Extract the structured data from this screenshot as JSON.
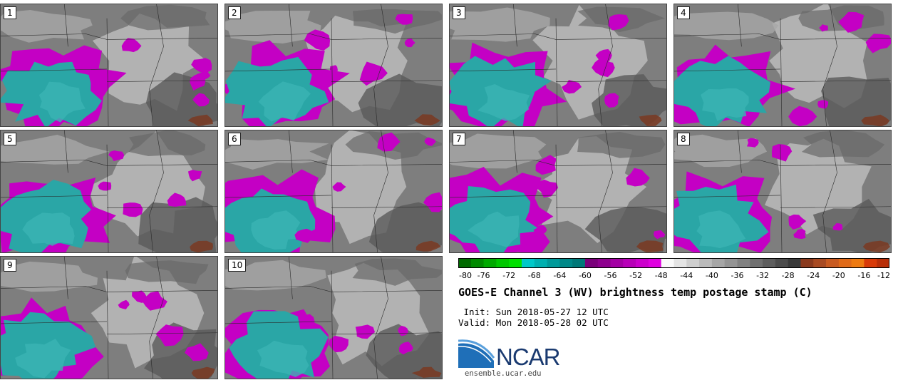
{
  "panels": [
    {
      "label": "1"
    },
    {
      "label": "2"
    },
    {
      "label": "3"
    },
    {
      "label": "4"
    },
    {
      "label": "5"
    },
    {
      "label": "6"
    },
    {
      "label": "7"
    },
    {
      "label": "8"
    },
    {
      "label": "9"
    },
    {
      "label": "10"
    }
  ],
  "colorbar": {
    "ticks": [
      "-80",
      "-76",
      "-72",
      "-68",
      "-64",
      "-60",
      "-56",
      "-52",
      "-48",
      "-44",
      "-40",
      "-36",
      "-32",
      "-28",
      "-24",
      "-20",
      "-16",
      "-12"
    ],
    "colors": [
      "#006a00",
      "#008a00",
      "#00aa00",
      "#00c800",
      "#00e000",
      "#00c8c8",
      "#00b0b0",
      "#009a9a",
      "#008888",
      "#007878",
      "#7a007a",
      "#8e008e",
      "#a400a4",
      "#b800b8",
      "#cc00cc",
      "#e000e0",
      "#fafafa",
      "#e4e4e4",
      "#cecece",
      "#bababa",
      "#a6a6a6",
      "#949494",
      "#828282",
      "#707070",
      "#5e5e5e",
      "#4c4c4c",
      "#3a3a3a",
      "#8a3a1e",
      "#a84a22",
      "#c85a20",
      "#e06a18",
      "#ee7a10",
      "#d83a08",
      "#b82e08"
    ]
  },
  "title": "GOES-E Channel 3 (WV) brightness temp postage stamp (C)",
  "init": " Init: Sun 2018-05-27 12 UTC",
  "valid": "Valid: Mon 2018-05-28 02 UTC",
  "logo": {
    "name": "NCAR",
    "url": "ensemble.ucar.edu"
  }
}
